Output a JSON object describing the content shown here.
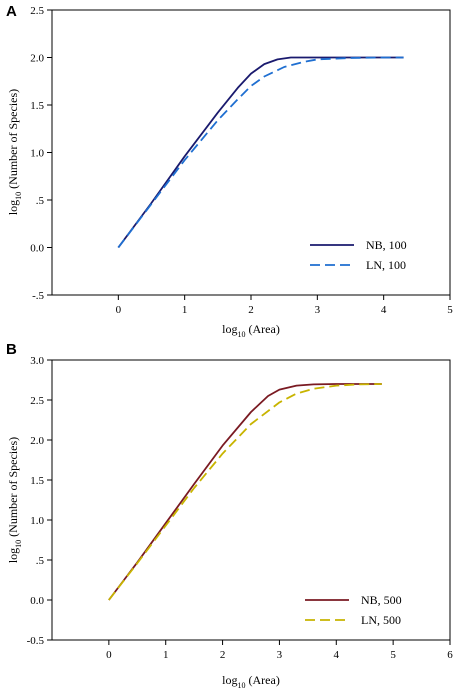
{
  "chart_data": [
    {
      "panel": "A",
      "type": "line",
      "xlabel": {
        "base": "log",
        "sub": "10",
        "rest": " (Area)"
      },
      "ylabel": {
        "base": "log",
        "sub": "10",
        "rest": " (Number of Species)"
      },
      "xlim": [
        -1,
        5
      ],
      "ylim": [
        -0.5,
        2.5
      ],
      "x_ticks": [
        0,
        1,
        2,
        3,
        4,
        5
      ],
      "x_tick_labels": [
        "0",
        "1",
        "2",
        "3",
        "4",
        "5"
      ],
      "y_ticks": [
        -0.5,
        0,
        0.5,
        1,
        1.5,
        2,
        2.5
      ],
      "y_tick_labels": [
        "-.5",
        "0.0",
        ".5",
        "1.0",
        "1.5",
        "2.0",
        "2.5"
      ],
      "grid": false,
      "legend": "bottom-right",
      "series": [
        {
          "name": "NB, 100",
          "color": "#1a1a6e",
          "dash": "solid",
          "points": [
            [
              0,
              0
            ],
            [
              0.5,
              0.47
            ],
            [
              1,
              0.96
            ],
            [
              1.5,
              1.42
            ],
            [
              1.8,
              1.68
            ],
            [
              2,
              1.83
            ],
            [
              2.2,
              1.93
            ],
            [
              2.4,
              1.98
            ],
            [
              2.6,
              2.0
            ],
            [
              3,
              2.0
            ],
            [
              3.5,
              2.0
            ],
            [
              4,
              2.0
            ],
            [
              4.3,
              2.0
            ]
          ]
        },
        {
          "name": "LN, 100",
          "color": "#1f6fd1",
          "dash": "dashed",
          "points": [
            [
              0,
              0
            ],
            [
              0.5,
              0.46
            ],
            [
              1,
              0.92
            ],
            [
              1.5,
              1.34
            ],
            [
              1.8,
              1.56
            ],
            [
              2,
              1.7
            ],
            [
              2.2,
              1.8
            ],
            [
              2.5,
              1.9
            ],
            [
              2.8,
              1.955
            ],
            [
              3,
              1.98
            ],
            [
              3.5,
              1.995
            ],
            [
              4,
              2.0
            ],
            [
              4.3,
              2.0
            ]
          ]
        }
      ]
    },
    {
      "panel": "B",
      "type": "line",
      "xlabel": {
        "base": "log",
        "sub": "10",
        "rest": " (Area)"
      },
      "ylabel": {
        "base": "log",
        "sub": "10",
        "rest": " (Number of Species)"
      },
      "xlim": [
        -1,
        6
      ],
      "ylim": [
        -0.5,
        3.0
      ],
      "x_ticks": [
        0,
        1,
        2,
        3,
        4,
        5,
        6
      ],
      "x_tick_labels": [
        "0",
        "1",
        "2",
        "3",
        "4",
        "5",
        "6"
      ],
      "y_ticks": [
        -0.5,
        0,
        0.5,
        1,
        1.5,
        2,
        2.5,
        3
      ],
      "y_tick_labels": [
        "-0.5",
        "0.0",
        ".5",
        "1.0",
        "1.5",
        "2.0",
        "2.5",
        "3.0"
      ],
      "grid": false,
      "legend": "bottom-right",
      "series": [
        {
          "name": "NB, 500",
          "color": "#7a1a22",
          "dash": "solid",
          "points": [
            [
              0,
              0
            ],
            [
              0.5,
              0.47
            ],
            [
              1,
              0.96
            ],
            [
              1.5,
              1.45
            ],
            [
              2,
              1.93
            ],
            [
              2.5,
              2.35
            ],
            [
              2.8,
              2.55
            ],
            [
              3,
              2.63
            ],
            [
              3.3,
              2.68
            ],
            [
              3.6,
              2.695
            ],
            [
              4,
              2.7
            ],
            [
              4.5,
              2.7
            ],
            [
              4.8,
              2.7
            ]
          ]
        },
        {
          "name": "LN, 500",
          "color": "#c8b400",
          "dash": "dashed",
          "points": [
            [
              0,
              0
            ],
            [
              0.5,
              0.46
            ],
            [
              1,
              0.93
            ],
            [
              1.5,
              1.4
            ],
            [
              2,
              1.83
            ],
            [
              2.5,
              2.2
            ],
            [
              3,
              2.47
            ],
            [
              3.3,
              2.58
            ],
            [
              3.6,
              2.64
            ],
            [
              4,
              2.68
            ],
            [
              4.4,
              2.695
            ],
            [
              4.8,
              2.7
            ]
          ]
        }
      ]
    }
  ]
}
